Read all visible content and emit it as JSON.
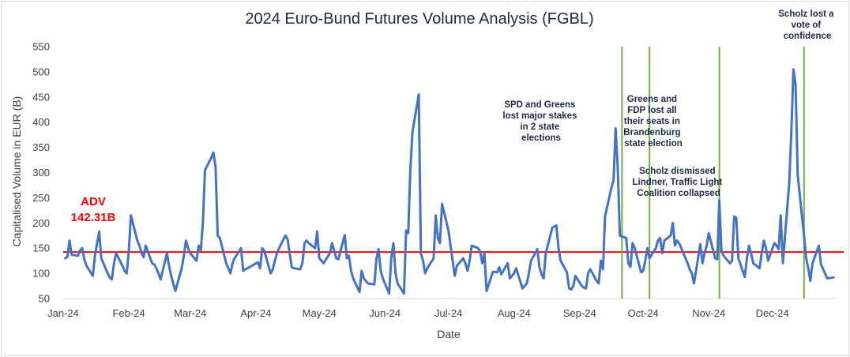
{
  "chart_data": {
    "type": "line",
    "title": "2024 Euro-Bund Futures Volume Analysis (FGBL)",
    "xlabel": "Date",
    "ylabel": "Capitalised Volume in EUR (B)",
    "ylim": [
      50,
      550
    ],
    "yticks": [
      50,
      100,
      150,
      200,
      250,
      300,
      350,
      400,
      450,
      500,
      550
    ],
    "xlim": [
      "2024-01-01",
      "2024-12-31"
    ],
    "xticks": [
      {
        "date": "2024-01-01",
        "label": "Jan-24"
      },
      {
        "date": "2024-02-01",
        "label": "Feb-24"
      },
      {
        "date": "2024-03-01",
        "label": "Mar-24"
      },
      {
        "date": "2024-04-01",
        "label": "Apr-24"
      },
      {
        "date": "2024-05-01",
        "label": "May-24"
      },
      {
        "date": "2024-06-01",
        "label": "Jun-24"
      },
      {
        "date": "2024-07-01",
        "label": "Jul-24"
      },
      {
        "date": "2024-08-01",
        "label": "Aug-24"
      },
      {
        "date": "2024-09-01",
        "label": "Sep-24"
      },
      {
        "date": "2024-10-01",
        "label": "Oct-24"
      },
      {
        "date": "2024-11-01",
        "label": "Nov-24"
      },
      {
        "date": "2024-12-01",
        "label": "Dec-24"
      }
    ],
    "grid": false,
    "series": [
      {
        "color": "#4472c4",
        "points": [
          [
            "2024-01-02",
            130
          ],
          [
            "2024-01-03",
            133
          ],
          [
            "2024-01-04",
            165
          ],
          [
            "2024-01-05",
            137
          ],
          [
            "2024-01-08",
            135
          ],
          [
            "2024-01-09",
            146
          ],
          [
            "2024-01-10",
            150
          ],
          [
            "2024-01-11",
            128
          ],
          [
            "2024-01-12",
            115
          ],
          [
            "2024-01-15",
            95
          ],
          [
            "2024-01-16",
            135
          ],
          [
            "2024-01-17",
            160
          ],
          [
            "2024-01-18",
            183
          ],
          [
            "2024-01-19",
            130
          ],
          [
            "2024-01-22",
            100
          ],
          [
            "2024-01-23",
            92
          ],
          [
            "2024-01-24",
            88
          ],
          [
            "2024-01-25",
            120
          ],
          [
            "2024-01-26",
            140
          ],
          [
            "2024-01-29",
            115
          ],
          [
            "2024-01-30",
            105
          ],
          [
            "2024-01-31",
            100
          ],
          [
            "2024-02-01",
            145
          ],
          [
            "2024-02-02",
            215
          ],
          [
            "2024-02-05",
            165
          ],
          [
            "2024-02-06",
            155
          ],
          [
            "2024-02-07",
            140
          ],
          [
            "2024-02-08",
            132
          ],
          [
            "2024-02-09",
            155
          ],
          [
            "2024-02-12",
            120
          ],
          [
            "2024-02-13",
            118
          ],
          [
            "2024-02-14",
            110
          ],
          [
            "2024-02-15",
            100
          ],
          [
            "2024-02-16",
            88
          ],
          [
            "2024-02-19",
            140
          ],
          [
            "2024-02-20",
            115
          ],
          [
            "2024-02-21",
            95
          ],
          [
            "2024-02-22",
            80
          ],
          [
            "2024-02-23",
            65
          ],
          [
            "2024-02-26",
            110
          ],
          [
            "2024-02-27",
            135
          ],
          [
            "2024-02-28",
            165
          ],
          [
            "2024-02-29",
            150
          ],
          [
            "2024-03-01",
            140
          ],
          [
            "2024-03-04",
            125
          ],
          [
            "2024-03-05",
            155
          ],
          [
            "2024-03-06",
            145
          ],
          [
            "2024-03-07",
            200
          ],
          [
            "2024-03-08",
            305
          ],
          [
            "2024-03-11",
            330
          ],
          [
            "2024-03-12",
            340
          ],
          [
            "2024-03-13",
            310
          ],
          [
            "2024-03-14",
            175
          ],
          [
            "2024-03-15",
            170
          ],
          [
            "2024-03-18",
            120
          ],
          [
            "2024-03-19",
            110
          ],
          [
            "2024-03-20",
            100
          ],
          [
            "2024-03-21",
            120
          ],
          [
            "2024-03-22",
            130
          ],
          [
            "2024-03-25",
            150
          ],
          [
            "2024-03-26",
            105
          ],
          [
            "2024-03-27",
            108
          ],
          [
            "2024-03-28",
            110
          ],
          [
            "2024-04-02",
            122
          ],
          [
            "2024-04-03",
            110
          ],
          [
            "2024-04-04",
            150
          ],
          [
            "2024-04-05",
            145
          ],
          [
            "2024-04-08",
            100
          ],
          [
            "2024-04-09",
            108
          ],
          [
            "2024-04-10",
            125
          ],
          [
            "2024-04-11",
            140
          ],
          [
            "2024-04-12",
            150
          ],
          [
            "2024-04-15",
            175
          ],
          [
            "2024-04-16",
            168
          ],
          [
            "2024-04-17",
            140
          ],
          [
            "2024-04-18",
            112
          ],
          [
            "2024-04-19",
            110
          ],
          [
            "2024-04-22",
            108
          ],
          [
            "2024-04-23",
            120
          ],
          [
            "2024-04-24",
            160
          ],
          [
            "2024-04-25",
            165
          ],
          [
            "2024-04-26",
            160
          ],
          [
            "2024-04-29",
            150
          ],
          [
            "2024-04-30",
            183
          ],
          [
            "2024-05-01",
            130
          ],
          [
            "2024-05-02",
            125
          ],
          [
            "2024-05-03",
            120
          ],
          [
            "2024-05-06",
            140
          ],
          [
            "2024-05-07",
            160
          ],
          [
            "2024-05-08",
            145
          ],
          [
            "2024-05-09",
            130
          ],
          [
            "2024-05-10",
            128
          ],
          [
            "2024-05-13",
            176
          ],
          [
            "2024-05-14",
            130
          ],
          [
            "2024-05-15",
            135
          ],
          [
            "2024-05-16",
            105
          ],
          [
            "2024-05-17",
            90
          ],
          [
            "2024-05-20",
            63
          ],
          [
            "2024-05-21",
            105
          ],
          [
            "2024-05-22",
            90
          ],
          [
            "2024-05-23",
            85
          ],
          [
            "2024-05-24",
            80
          ],
          [
            "2024-05-27",
            78
          ],
          [
            "2024-05-28",
            130
          ],
          [
            "2024-05-29",
            148
          ],
          [
            "2024-05-30",
            105
          ],
          [
            "2024-05-31",
            90
          ],
          [
            "2024-06-03",
            60
          ],
          [
            "2024-06-04",
            130
          ],
          [
            "2024-06-05",
            160
          ],
          [
            "2024-06-06",
            100
          ],
          [
            "2024-06-07",
            80
          ],
          [
            "2024-06-10",
            60
          ],
          [
            "2024-06-11",
            185
          ],
          [
            "2024-06-12",
            180
          ],
          [
            "2024-06-13",
            305
          ],
          [
            "2024-06-14",
            380
          ],
          [
            "2024-06-17",
            455
          ],
          [
            "2024-06-18",
            140
          ],
          [
            "2024-06-19",
            125
          ],
          [
            "2024-06-20",
            100
          ],
          [
            "2024-06-21",
            110
          ],
          [
            "2024-06-24",
            130
          ],
          [
            "2024-06-25",
            215
          ],
          [
            "2024-06-26",
            170
          ],
          [
            "2024-06-27",
            160
          ],
          [
            "2024-06-28",
            238
          ],
          [
            "2024-07-01",
            185
          ],
          [
            "2024-07-02",
            155
          ],
          [
            "2024-07-03",
            125
          ],
          [
            "2024-07-04",
            95
          ],
          [
            "2024-07-05",
            115
          ],
          [
            "2024-07-08",
            130
          ],
          [
            "2024-07-09",
            120
          ],
          [
            "2024-07-10",
            105
          ],
          [
            "2024-07-11",
            125
          ],
          [
            "2024-07-12",
            155
          ],
          [
            "2024-07-15",
            150
          ],
          [
            "2024-07-16",
            143
          ],
          [
            "2024-07-17",
            120
          ],
          [
            "2024-07-18",
            140
          ],
          [
            "2024-07-19",
            65
          ],
          [
            "2024-07-22",
            103
          ],
          [
            "2024-07-23",
            103
          ],
          [
            "2024-07-24",
            102
          ],
          [
            "2024-07-25",
            112
          ],
          [
            "2024-07-26",
            98
          ],
          [
            "2024-07-29",
            120
          ],
          [
            "2024-07-30",
            90
          ],
          [
            "2024-07-31",
            95
          ],
          [
            "2024-08-01",
            100
          ],
          [
            "2024-08-02",
            110
          ],
          [
            "2024-08-05",
            70
          ],
          [
            "2024-08-06",
            75
          ],
          [
            "2024-08-07",
            80
          ],
          [
            "2024-08-08",
            100
          ],
          [
            "2024-08-09",
            125
          ],
          [
            "2024-08-12",
            148
          ],
          [
            "2024-08-13",
            112
          ],
          [
            "2024-08-14",
            98
          ],
          [
            "2024-08-15",
            90
          ],
          [
            "2024-08-16",
            140
          ],
          [
            "2024-08-19",
            190
          ],
          [
            "2024-08-20",
            193
          ],
          [
            "2024-08-21",
            195
          ],
          [
            "2024-08-22",
            150
          ],
          [
            "2024-08-23",
            125
          ],
          [
            "2024-08-26",
            102
          ],
          [
            "2024-08-27",
            70
          ],
          [
            "2024-08-28",
            68
          ],
          [
            "2024-08-29",
            75
          ],
          [
            "2024-08-30",
            95
          ],
          [
            "2024-09-02",
            75
          ],
          [
            "2024-09-03",
            72
          ],
          [
            "2024-09-04",
            70
          ],
          [
            "2024-09-05",
            100
          ],
          [
            "2024-09-06",
            108
          ],
          [
            "2024-09-09",
            85
          ],
          [
            "2024-09-10",
            80
          ],
          [
            "2024-09-11",
            125
          ],
          [
            "2024-09-12",
            108
          ],
          [
            "2024-09-13",
            213
          ],
          [
            "2024-09-16",
            270
          ],
          [
            "2024-09-17",
            285
          ],
          [
            "2024-09-18",
            388
          ],
          [
            "2024-09-19",
            310
          ],
          [
            "2024-09-20",
            175
          ],
          [
            "2024-09-23",
            170
          ],
          [
            "2024-09-24",
            120
          ],
          [
            "2024-09-25",
            113
          ],
          [
            "2024-09-26",
            160
          ],
          [
            "2024-09-27",
            150
          ],
          [
            "2024-09-30",
            102
          ],
          [
            "2024-10-01",
            105
          ],
          [
            "2024-10-02",
            125
          ],
          [
            "2024-10-03",
            150
          ],
          [
            "2024-10-04",
            130
          ],
          [
            "2024-10-07",
            150
          ],
          [
            "2024-10-08",
            165
          ],
          [
            "2024-10-09",
            170
          ],
          [
            "2024-10-10",
            140
          ],
          [
            "2024-10-11",
            165
          ],
          [
            "2024-10-14",
            175
          ],
          [
            "2024-10-15",
            200
          ],
          [
            "2024-10-16",
            155
          ],
          [
            "2024-10-17",
            165
          ],
          [
            "2024-10-18",
            160
          ],
          [
            "2024-10-21",
            130
          ],
          [
            "2024-10-22",
            120
          ],
          [
            "2024-10-23",
            108
          ],
          [
            "2024-10-24",
            100
          ],
          [
            "2024-10-25",
            80
          ],
          [
            "2024-10-28",
            158
          ],
          [
            "2024-10-29",
            120
          ],
          [
            "2024-10-30",
            140
          ],
          [
            "2024-10-31",
            155
          ],
          [
            "2024-11-01",
            180
          ],
          [
            "2024-11-04",
            130
          ],
          [
            "2024-11-05",
            128
          ],
          [
            "2024-11-06",
            245
          ],
          [
            "2024-11-07",
            145
          ],
          [
            "2024-11-08",
            135
          ],
          [
            "2024-11-11",
            120
          ],
          [
            "2024-11-12",
            125
          ],
          [
            "2024-11-13",
            213
          ],
          [
            "2024-11-14",
            210
          ],
          [
            "2024-11-15",
            130
          ],
          [
            "2024-11-18",
            93
          ],
          [
            "2024-11-19",
            130
          ],
          [
            "2024-11-20",
            155
          ],
          [
            "2024-11-21",
            140
          ],
          [
            "2024-11-22",
            120
          ],
          [
            "2024-11-25",
            110
          ],
          [
            "2024-11-26",
            140
          ],
          [
            "2024-11-27",
            165
          ],
          [
            "2024-11-28",
            150
          ],
          [
            "2024-11-29",
            125
          ],
          [
            "2024-12-02",
            160
          ],
          [
            "2024-12-03",
            155
          ],
          [
            "2024-12-04",
            148
          ],
          [
            "2024-12-05",
            215
          ],
          [
            "2024-12-06",
            120
          ],
          [
            "2024-12-09",
            280
          ],
          [
            "2024-12-10",
            380
          ],
          [
            "2024-12-11",
            505
          ],
          [
            "2024-12-12",
            475
          ],
          [
            "2024-12-13",
            295
          ],
          [
            "2024-12-16",
            175
          ],
          [
            "2024-12-17",
            130
          ],
          [
            "2024-12-18",
            110
          ],
          [
            "2024-12-19",
            85
          ],
          [
            "2024-12-20",
            120
          ],
          [
            "2024-12-23",
            155
          ],
          [
            "2024-12-24",
            118
          ],
          [
            "2024-12-27",
            90
          ],
          [
            "2024-12-30",
            92
          ]
        ]
      }
    ],
    "reference_line": {
      "value": 142.31,
      "color": "#ff0000",
      "label": "ADV",
      "value_label": "142.31B"
    },
    "event_lines": [
      {
        "date": "2024-09-21",
        "color": "#70ad47"
      },
      {
        "date": "2024-10-04",
        "color": "#70ad47"
      },
      {
        "date": "2024-11-06",
        "color": "#70ad47"
      },
      {
        "date": "2024-12-16",
        "color": "#70ad47"
      }
    ],
    "annotations": [
      {
        "lines": [
          "SPD and Greens",
          "lost major stakes",
          "in 2 state",
          "elections"
        ]
      },
      {
        "lines": [
          "Greens and",
          "FDP lost all",
          "their seats in",
          "Brandenburg",
          "state election"
        ]
      },
      {
        "lines": [
          "Scholz dismissed",
          "Lindner, Traffic Light",
          "Coalition collapsed"
        ]
      },
      {
        "lines": [
          "Scholz lost a",
          "vote of",
          "confidence"
        ]
      }
    ]
  }
}
